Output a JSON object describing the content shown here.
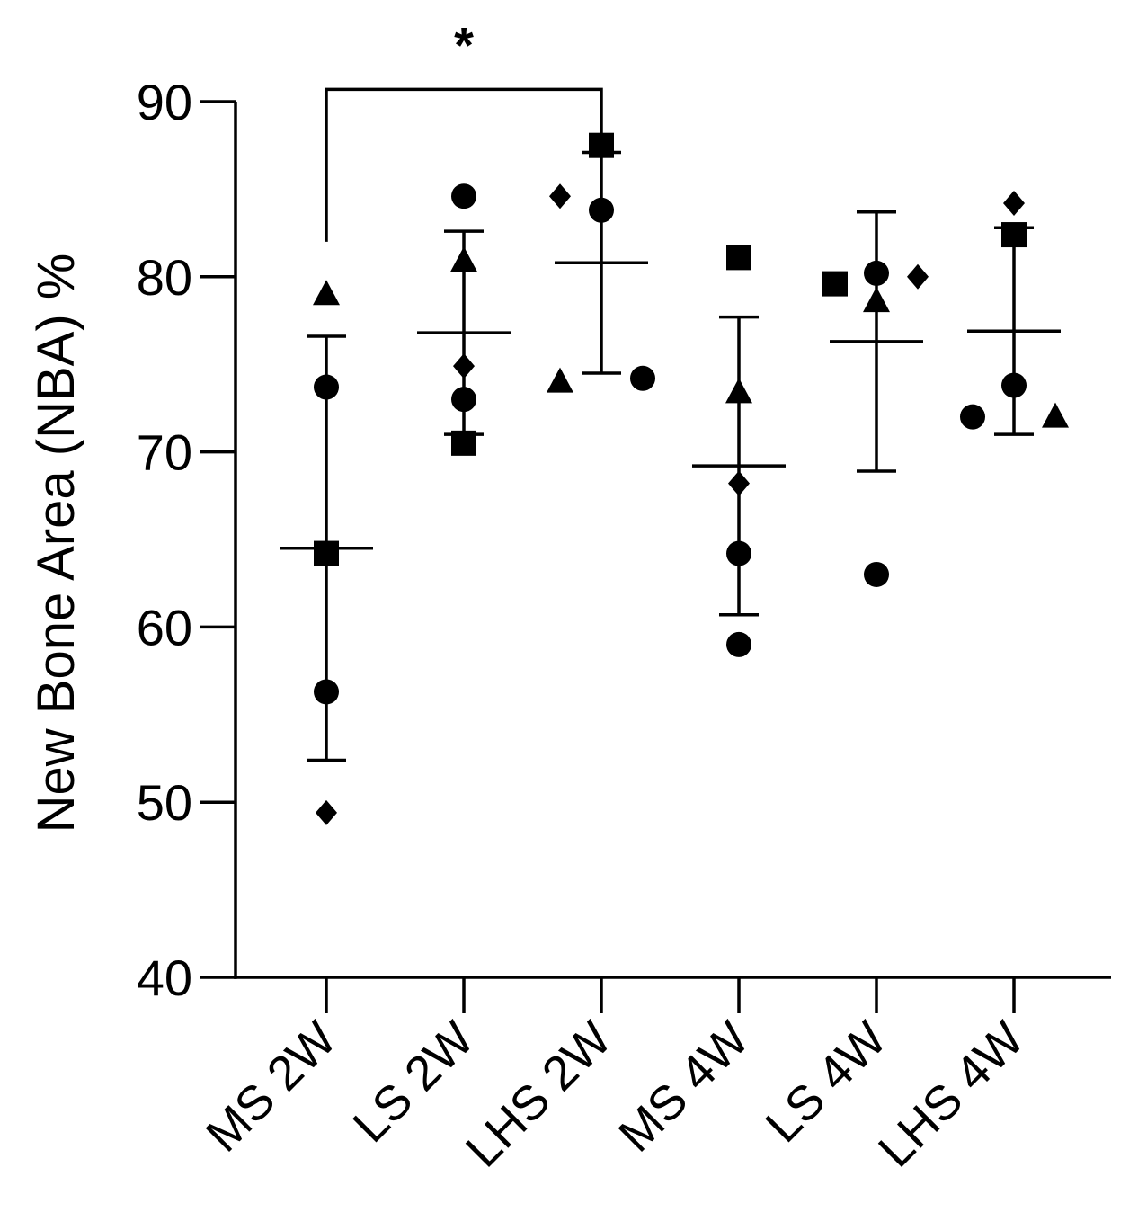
{
  "chart_data": {
    "type": "scatter",
    "title": "",
    "xlabel": "",
    "ylabel": "New Bone Area (NBA) %",
    "ylim": [
      40,
      90
    ],
    "yticks": [
      40,
      50,
      60,
      70,
      80,
      90
    ],
    "grid": false,
    "categories": [
      "MS 2W",
      "LS 2W",
      "LHS 2W",
      "MS 4W",
      "LS 4W",
      "LHS 4W"
    ],
    "groups": [
      {
        "category": "MS 2W",
        "mean": 64.5,
        "sd_low": 52.4,
        "sd_high": 76.6,
        "points": [
          {
            "shape": "triangle",
            "value": 79.0,
            "offset": 0
          },
          {
            "shape": "circle",
            "value": 73.7,
            "offset": 0
          },
          {
            "shape": "square",
            "value": 64.2,
            "offset": 0
          },
          {
            "shape": "circle",
            "value": 56.3,
            "offset": 0
          },
          {
            "shape": "diamond",
            "value": 49.4,
            "offset": 0
          }
        ]
      },
      {
        "category": "LS 2W",
        "mean": 76.8,
        "sd_low": 71.0,
        "sd_high": 82.6,
        "points": [
          {
            "shape": "circle",
            "value": 84.6,
            "offset": 0
          },
          {
            "shape": "triangle",
            "value": 80.9,
            "offset": 0
          },
          {
            "shape": "diamond",
            "value": 74.9,
            "offset": 0
          },
          {
            "shape": "circle",
            "value": 73.0,
            "offset": 0
          },
          {
            "shape": "square",
            "value": 70.5,
            "offset": 0
          }
        ]
      },
      {
        "category": "LHS 2W",
        "mean": 80.8,
        "sd_low": 74.5,
        "sd_high": 87.1,
        "points": [
          {
            "shape": "square",
            "value": 87.5,
            "offset": 0
          },
          {
            "shape": "diamond",
            "value": 84.6,
            "offset": -1
          },
          {
            "shape": "circle",
            "value": 83.8,
            "offset": 0
          },
          {
            "shape": "triangle",
            "value": 74.0,
            "offset": -1
          },
          {
            "shape": "circle",
            "value": 74.2,
            "offset": 1
          }
        ]
      },
      {
        "category": "MS 4W",
        "mean": 69.2,
        "sd_low": 60.7,
        "sd_high": 77.7,
        "points": [
          {
            "shape": "square",
            "value": 81.1,
            "offset": 0
          },
          {
            "shape": "triangle",
            "value": 73.4,
            "offset": 0
          },
          {
            "shape": "diamond",
            "value": 68.2,
            "offset": 0
          },
          {
            "shape": "circle",
            "value": 64.2,
            "offset": 0
          },
          {
            "shape": "circle",
            "value": 59.0,
            "offset": 0
          }
        ]
      },
      {
        "category": "LS 4W",
        "mean": 76.3,
        "sd_low": 68.9,
        "sd_high": 83.7,
        "points": [
          {
            "shape": "square",
            "value": 79.6,
            "offset": -1
          },
          {
            "shape": "circle",
            "value": 80.2,
            "offset": 0
          },
          {
            "shape": "diamond",
            "value": 80.0,
            "offset": 1
          },
          {
            "shape": "triangle",
            "value": 78.6,
            "offset": 0
          },
          {
            "shape": "circle",
            "value": 63.0,
            "offset": 0
          }
        ]
      },
      {
        "category": "LHS 4W",
        "mean": 76.9,
        "sd_low": 71.0,
        "sd_high": 82.8,
        "points": [
          {
            "shape": "diamond",
            "value": 84.2,
            "offset": 0
          },
          {
            "shape": "square",
            "value": 82.4,
            "offset": 0
          },
          {
            "shape": "circle",
            "value": 73.8,
            "offset": 0
          },
          {
            "shape": "circle",
            "value": 72.0,
            "offset": -1
          },
          {
            "shape": "triangle",
            "value": 72.0,
            "offset": 1
          }
        ]
      }
    ],
    "annotations": [
      {
        "type": "significance-bracket",
        "from": "MS 2W",
        "to": "LHS 2W",
        "label": "*",
        "value": 90.7,
        "left_end": 82,
        "right_end": 88
      }
    ]
  }
}
